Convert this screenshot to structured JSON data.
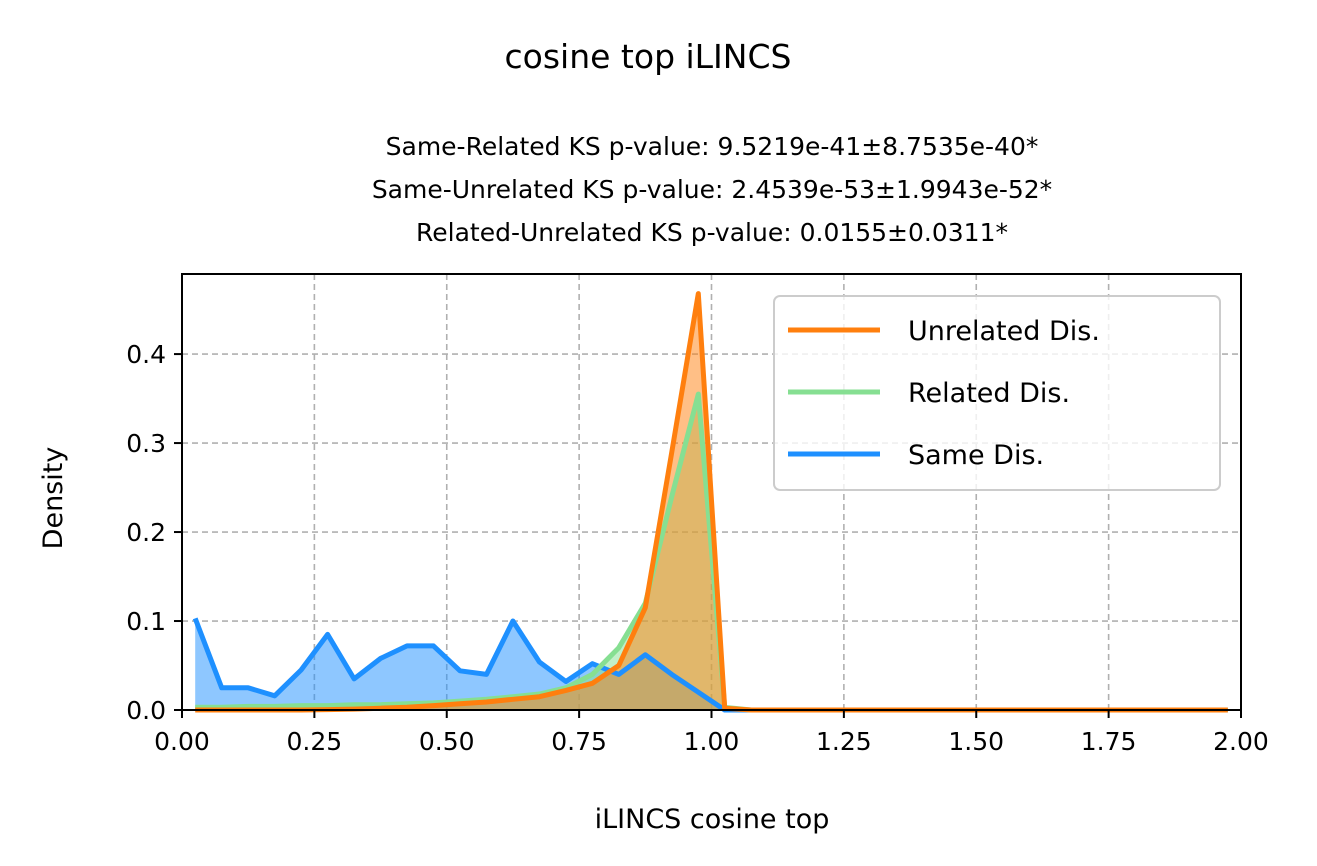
{
  "chart_data": {
    "type": "area",
    "suptitle": "cosine top iLINCS",
    "subtitle_lines": [
      "Same-Related KS p-value: 9.5219e-41±8.7535e-40*",
      "Same-Unrelated KS p-value: 2.4539e-53±1.9943e-52*",
      "Related-Unrelated KS p-value: 0.0155±0.0311*"
    ],
    "xlabel": "iLINCS cosine top",
    "ylabel": "Density",
    "xlim": [
      0,
      2
    ],
    "ylim": [
      0,
      0.49
    ],
    "xticks": [
      "0.00",
      "0.25",
      "0.50",
      "0.75",
      "1.00",
      "1.25",
      "1.50",
      "1.75",
      "2.00"
    ],
    "xtick_values": [
      0,
      0.25,
      0.5,
      0.75,
      1.0,
      1.25,
      1.5,
      1.75,
      2.0
    ],
    "yticks": [
      "0.0",
      "0.1",
      "0.2",
      "0.3",
      "0.4"
    ],
    "ytick_values": [
      0,
      0.1,
      0.2,
      0.3,
      0.4
    ],
    "grid": true,
    "legend_position": "top-right",
    "series": [
      {
        "name": "Unrelated Dis.",
        "color": "#ff7f0e",
        "x": [
          0.025,
          0.075,
          0.125,
          0.175,
          0.225,
          0.275,
          0.325,
          0.375,
          0.425,
          0.475,
          0.525,
          0.575,
          0.625,
          0.675,
          0.725,
          0.775,
          0.825,
          0.875,
          0.925,
          0.975,
          1.025,
          1.075,
          1.125,
          1.175,
          1.225,
          1.275,
          1.325,
          1.375,
          1.425,
          1.475,
          1.525,
          1.575,
          1.625,
          1.675,
          1.725,
          1.775,
          1.825,
          1.875,
          1.925,
          1.975
        ],
        "y": [
          0.0,
          0.0,
          0.0,
          0.0,
          0.0,
          0.0005,
          0.001,
          0.002,
          0.003,
          0.005,
          0.007,
          0.009,
          0.012,
          0.015,
          0.022,
          0.03,
          0.05,
          0.115,
          0.29,
          0.468,
          0.002,
          0.0,
          0.0,
          0.0,
          0.0,
          0.0,
          0.0,
          0.0,
          0.0,
          0.0,
          0.0,
          0.0,
          0.0,
          0.0,
          0.0,
          0.0,
          0.0,
          0.0,
          0.0,
          0.0
        ]
      },
      {
        "name": "Related Dis.",
        "color": "#86df92",
        "x": [
          0.025,
          0.075,
          0.125,
          0.175,
          0.225,
          0.275,
          0.325,
          0.375,
          0.425,
          0.475,
          0.525,
          0.575,
          0.625,
          0.675,
          0.725,
          0.775,
          0.825,
          0.875,
          0.925,
          0.975,
          1.025,
          1.075,
          1.125,
          1.175,
          1.225,
          1.275,
          1.325,
          1.375,
          1.425,
          1.475,
          1.525,
          1.575,
          1.625,
          1.675,
          1.725,
          1.775,
          1.825,
          1.875,
          1.925,
          1.975
        ],
        "y": [
          0.003,
          0.003,
          0.004,
          0.004,
          0.005,
          0.005,
          0.006,
          0.006,
          0.007,
          0.008,
          0.01,
          0.012,
          0.015,
          0.018,
          0.025,
          0.04,
          0.07,
          0.12,
          0.24,
          0.355,
          0.003,
          0.0,
          0.0,
          0.0,
          0.0,
          0.0,
          0.0,
          0.0,
          0.0,
          0.0,
          0.0,
          0.0,
          0.0,
          0.0,
          0.0,
          0.0,
          0.0,
          0.0,
          0.0,
          0.0
        ]
      },
      {
        "name": "Same Dis.",
        "color": "#1e90ff",
        "x": [
          0.025,
          0.075,
          0.125,
          0.175,
          0.225,
          0.275,
          0.325,
          0.375,
          0.425,
          0.475,
          0.525,
          0.575,
          0.625,
          0.675,
          0.725,
          0.775,
          0.825,
          0.875,
          0.925,
          0.975,
          1.025,
          1.075,
          1.125,
          1.175,
          1.225,
          1.275,
          1.325,
          1.375,
          1.425,
          1.475,
          1.525,
          1.575,
          1.625,
          1.675,
          1.725,
          1.775,
          1.825,
          1.875,
          1.925,
          1.975
        ],
        "y": [
          0.103,
          0.025,
          0.025,
          0.016,
          0.045,
          0.085,
          0.035,
          0.058,
          0.072,
          0.072,
          0.044,
          0.04,
          0.1,
          0.054,
          0.032,
          0.052,
          0.04,
          0.062,
          0.04,
          0.02,
          0.0,
          0.0,
          0.0,
          0.0,
          0.0,
          0.0,
          0.0,
          0.0,
          0.0,
          0.0,
          0.0,
          0.0,
          0.0,
          0.0,
          0.0,
          0.0,
          0.0,
          0.0,
          0.0,
          0.0
        ]
      }
    ],
    "legend_order": [
      "Unrelated Dis.",
      "Related Dis.",
      "Same Dis."
    ]
  }
}
